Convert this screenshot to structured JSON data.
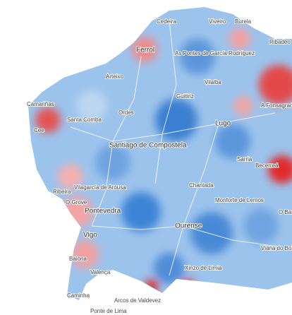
{
  "places": [
    "Cedeira",
    "Viveiro",
    "Burela",
    "Ferrol",
    "As Pontes de García Rodríguez",
    "Ribadeo",
    "Arteixo",
    "Camariñas",
    "Cee",
    "Santa Comba",
    "Ordes",
    "Guitiriz",
    "Vilalba",
    "A Fonsagrada",
    "Santiago de Compostela",
    "Lugo",
    "Becerreá",
    "Sarria",
    "Chantada",
    "Ribeira",
    "Vilagarcía de Arousa",
    "O Grove",
    "Monforte de Lemos",
    "Pontevedra",
    "O Barco",
    "Vigo",
    "Ourense",
    "Viana do Bolo",
    "Baiona",
    "Valença",
    "Xinzo de Limia",
    "Caminha",
    "Arcos de Valdevez",
    "Ponte de Lima"
  ]
}
